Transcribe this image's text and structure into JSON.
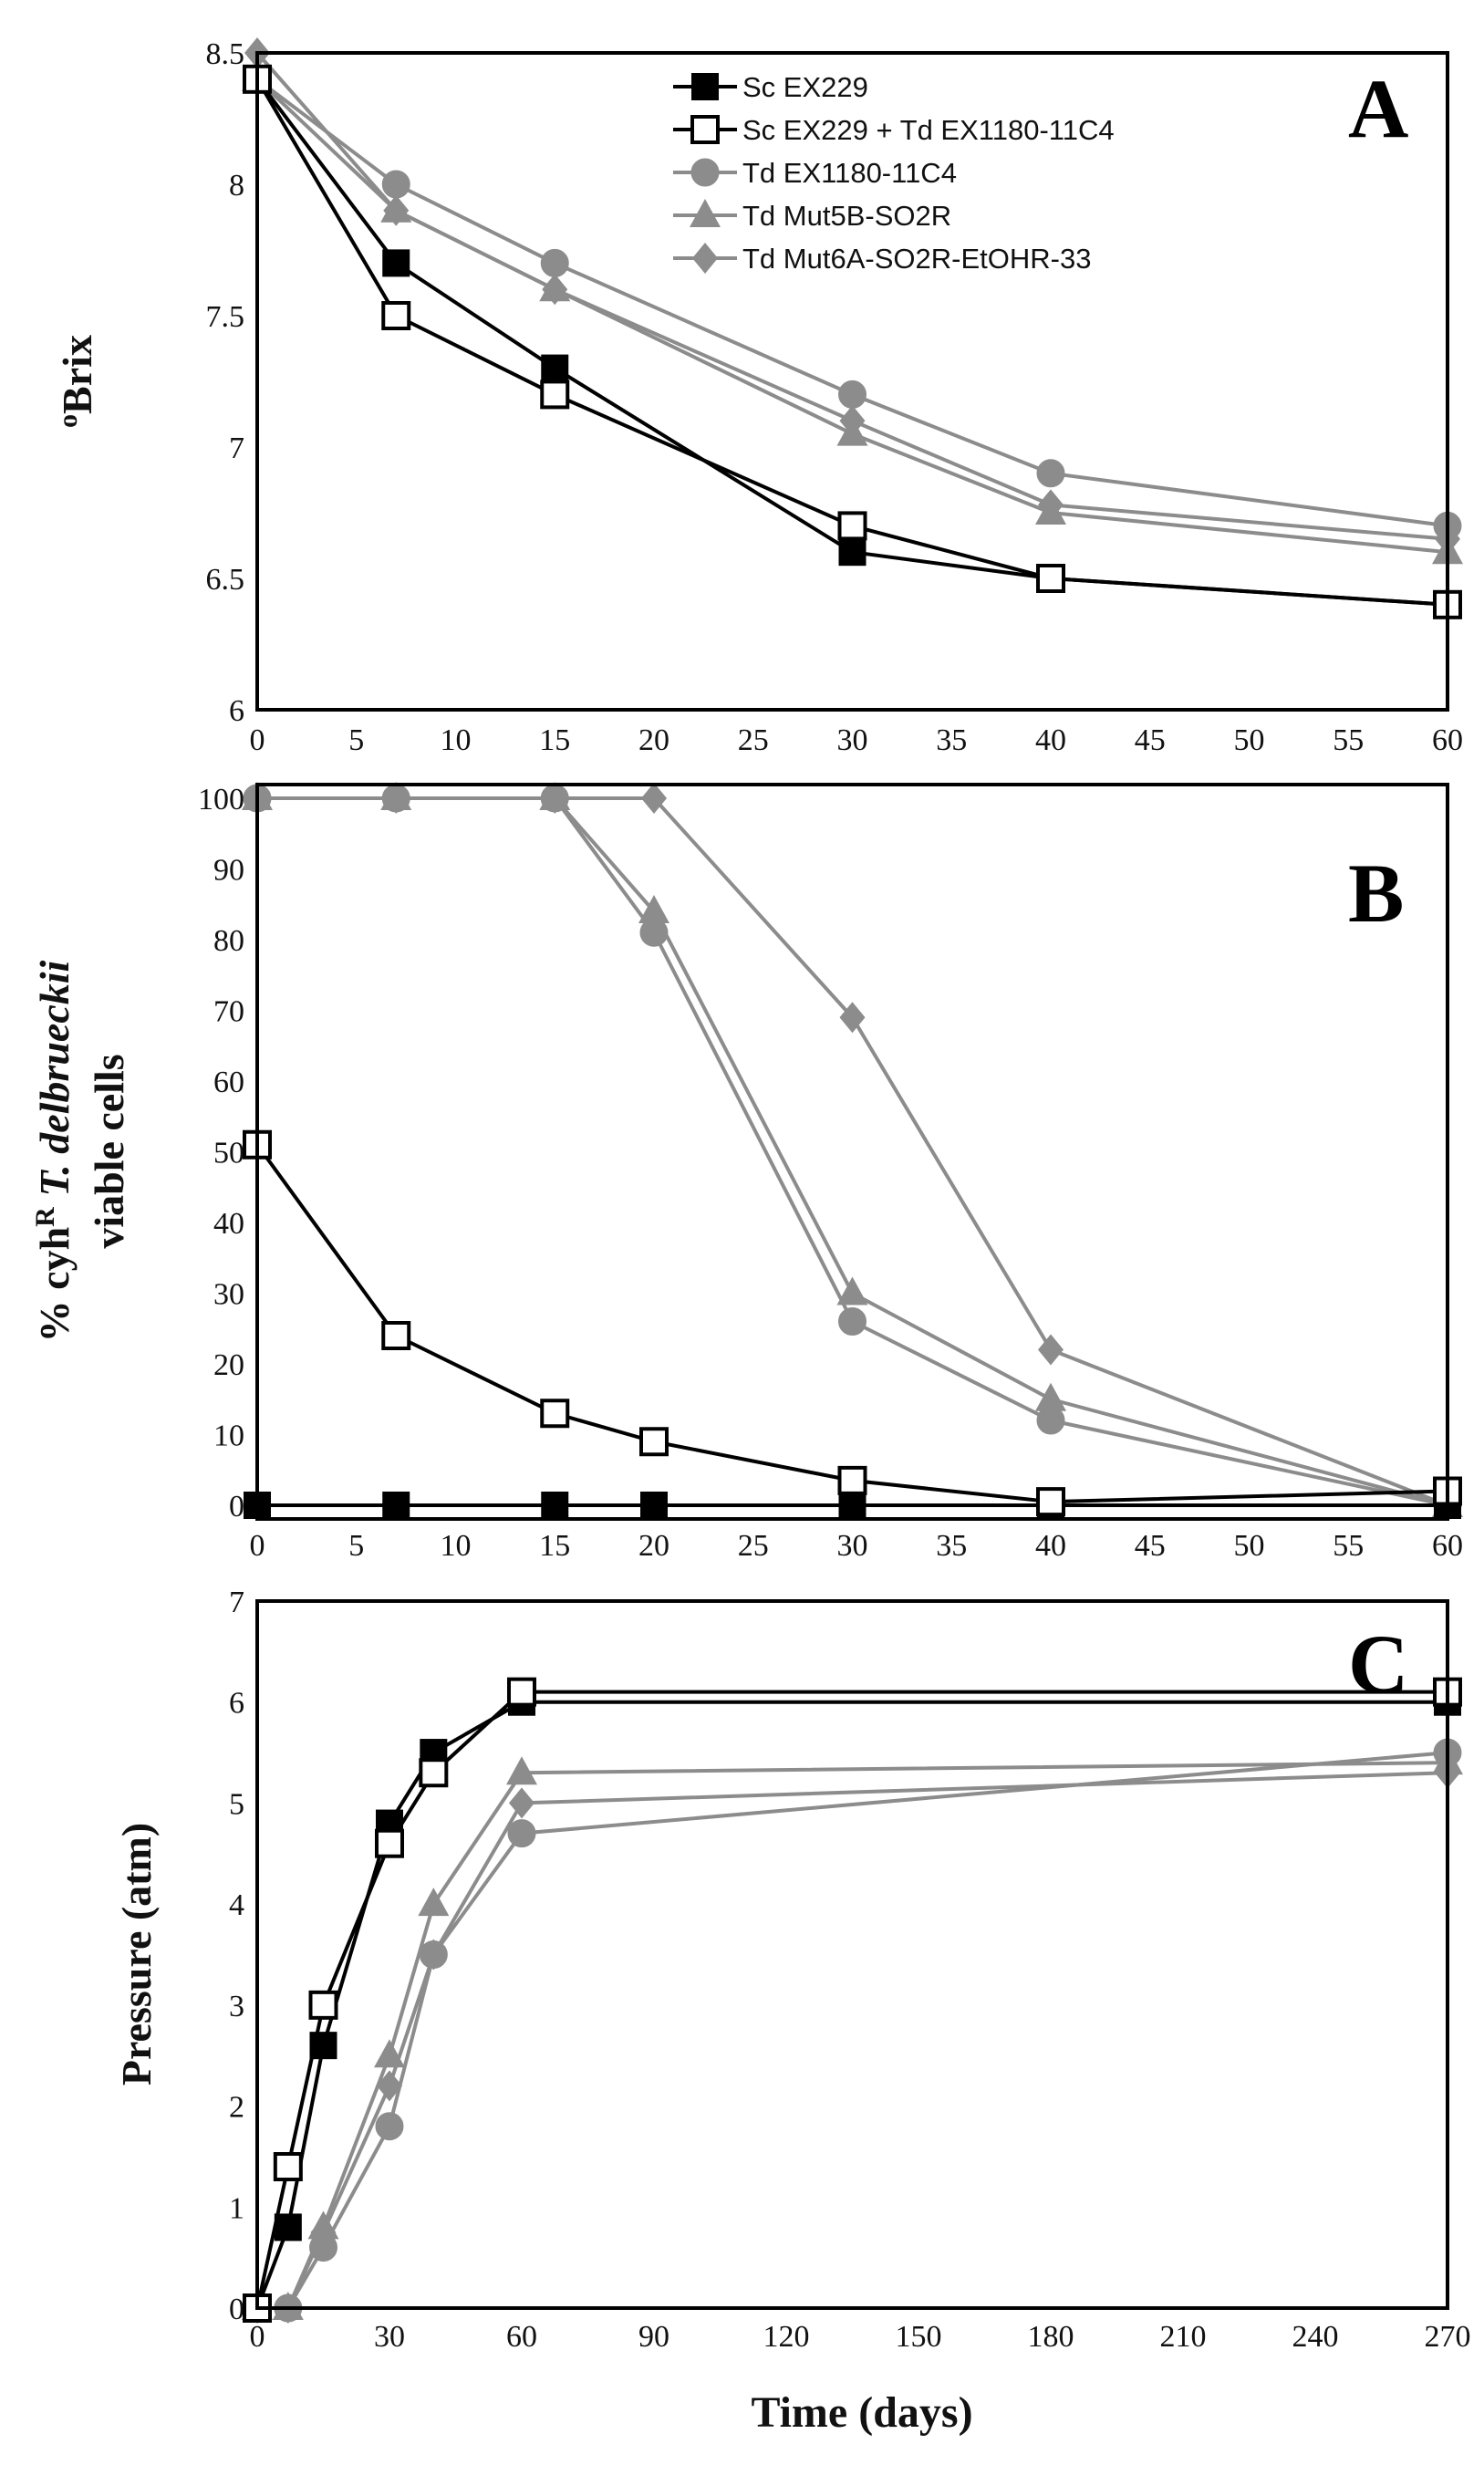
{
  "series_styles": {
    "sc": {
      "color": "#000000",
      "marker": "square-filled"
    },
    "mix": {
      "color": "#000000",
      "marker": "square-open"
    },
    "td": {
      "color": "#8c8c8c",
      "marker": "circle"
    },
    "mut5b": {
      "color": "#8c8c8c",
      "marker": "triangle"
    },
    "mut6a": {
      "color": "#8c8c8c",
      "marker": "diamond"
    }
  },
  "legend": [
    "Sc EX229",
    "Sc EX229 + Td EX1180-11C4",
    "Td EX1180-11C4",
    "Td Mut5B-SO2R",
    "Td Mut6A-SO2R-EtOHR-33"
  ],
  "chart_data": [
    {
      "type": "line",
      "panel": "A",
      "ylabel_superscript": "o",
      "ylabel_main": "Brix",
      "xlabel": "",
      "xlim": [
        0,
        60
      ],
      "ylim": [
        6,
        8.5
      ],
      "xticks": [
        "0",
        "5",
        "10",
        "15",
        "20",
        "25",
        "30",
        "35",
        "40",
        "45",
        "50",
        "55",
        "60"
      ],
      "yticks": [
        "6",
        "6.5",
        "7",
        "7.5",
        "8",
        "8.5"
      ],
      "series": [
        {
          "name": "Sc EX229",
          "style": "sc",
          "x": [
            0,
            7,
            15,
            30,
            40,
            60
          ],
          "y": [
            8.4,
            7.7,
            7.3,
            6.6,
            6.5,
            6.4
          ]
        },
        {
          "name": "Sc EX229 + Td EX1180-11C4",
          "style": "mix",
          "x": [
            0,
            7,
            15,
            30,
            40,
            60
          ],
          "y": [
            8.4,
            7.5,
            7.2,
            6.7,
            6.5,
            6.4
          ]
        },
        {
          "name": "Td EX1180-11C4",
          "style": "td",
          "x": [
            0,
            7,
            15,
            30,
            40,
            60
          ],
          "y": [
            8.4,
            8.0,
            7.7,
            7.2,
            6.9,
            6.7
          ]
        },
        {
          "name": "Td Mut5B-SO2R",
          "style": "mut5b",
          "x": [
            0,
            7,
            15,
            30,
            40,
            60
          ],
          "y": [
            8.4,
            7.9,
            7.6,
            7.05,
            6.75,
            6.6
          ]
        },
        {
          "name": "Td Mut6A-SO2R-EtOHR-33",
          "style": "mut6a",
          "x": [
            0,
            7,
            15,
            30,
            40,
            60
          ],
          "y": [
            8.5,
            7.9,
            7.6,
            7.1,
            6.78,
            6.65
          ]
        }
      ]
    },
    {
      "type": "line",
      "panel": "B",
      "ylabel_line1_pre": "% cyh",
      "ylabel_line1_sup": "R",
      "ylabel_line1_italic": " T. delbrueckii",
      "ylabel_line2": "viable cells",
      "xlabel": "",
      "xlim": [
        0,
        60
      ],
      "ylim": [
        0,
        100
      ],
      "xticks": [
        "0",
        "5",
        "10",
        "15",
        "20",
        "25",
        "30",
        "35",
        "40",
        "45",
        "50",
        "55",
        "60"
      ],
      "yticks": [
        "0",
        "10",
        "20",
        "30",
        "40",
        "50",
        "60",
        "70",
        "80",
        "90",
        "100"
      ],
      "series": [
        {
          "name": "Sc EX229",
          "style": "sc",
          "x": [
            0,
            7,
            15,
            20,
            30,
            40,
            60
          ],
          "y": [
            0,
            0,
            0,
            0,
            0,
            0,
            0
          ]
        },
        {
          "name": "Sc EX229 + Td EX1180-11C4",
          "style": "mix",
          "x": [
            0,
            7,
            15,
            20,
            30,
            40,
            60
          ],
          "y": [
            51,
            24,
            13,
            9,
            3.5,
            0.5,
            2
          ]
        },
        {
          "name": "Td EX1180-11C4",
          "style": "td",
          "x": [
            0,
            7,
            15,
            20,
            30,
            40,
            60
          ],
          "y": [
            100,
            100,
            100,
            81,
            26,
            12,
            0
          ]
        },
        {
          "name": "Td Mut5B-SO2R",
          "style": "mut5b",
          "x": [
            0,
            7,
            15,
            20,
            30,
            40,
            60
          ],
          "y": [
            100,
            100,
            100,
            84,
            30,
            15,
            0
          ]
        },
        {
          "name": "Td Mut6A-SO2R-EtOHR-33",
          "style": "mut6a",
          "x": [
            0,
            7,
            15,
            20,
            30,
            40,
            60
          ],
          "y": [
            100,
            100,
            100,
            100,
            69,
            22,
            0
          ]
        }
      ]
    },
    {
      "type": "line",
      "panel": "C",
      "ylabel": "Pressure (atm)",
      "xlabel": "Time (days)",
      "xlim": [
        0,
        270
      ],
      "ylim": [
        0,
        7
      ],
      "xticks": [
        "0",
        "30",
        "60",
        "90",
        "120",
        "150",
        "180",
        "210",
        "240",
        "270"
      ],
      "yticks": [
        "0",
        "1",
        "2",
        "3",
        "4",
        "5",
        "6",
        "7"
      ],
      "series": [
        {
          "name": "Sc EX229",
          "style": "sc",
          "x": [
            0,
            7,
            15,
            30,
            40,
            60,
            270
          ],
          "y": [
            0,
            0.8,
            2.6,
            4.8,
            5.5,
            6.0,
            6.0
          ]
        },
        {
          "name": "Sc EX229 + Td EX1180-11C4",
          "style": "mix",
          "x": [
            0,
            7,
            15,
            30,
            40,
            60,
            270
          ],
          "y": [
            0,
            1.4,
            3.0,
            4.6,
            5.3,
            6.1,
            6.1
          ]
        },
        {
          "name": "Td EX1180-11C4",
          "style": "td",
          "x": [
            0,
            7,
            15,
            30,
            40,
            60,
            270
          ],
          "y": [
            0,
            0,
            0.6,
            1.8,
            3.5,
            4.7,
            5.5
          ]
        },
        {
          "name": "Td Mut5B-SO2R",
          "style": "mut5b",
          "x": [
            0,
            7,
            15,
            30,
            40,
            60,
            270
          ],
          "y": [
            0,
            0,
            0.8,
            2.5,
            4.0,
            5.3,
            5.4
          ]
        },
        {
          "name": "Td Mut6A-SO2R-EtOHR-33",
          "style": "mut6a",
          "x": [
            0,
            7,
            15,
            30,
            40,
            60,
            270
          ],
          "y": [
            0,
            0,
            0.75,
            2.2,
            3.5,
            5.0,
            5.3
          ]
        }
      ]
    }
  ]
}
